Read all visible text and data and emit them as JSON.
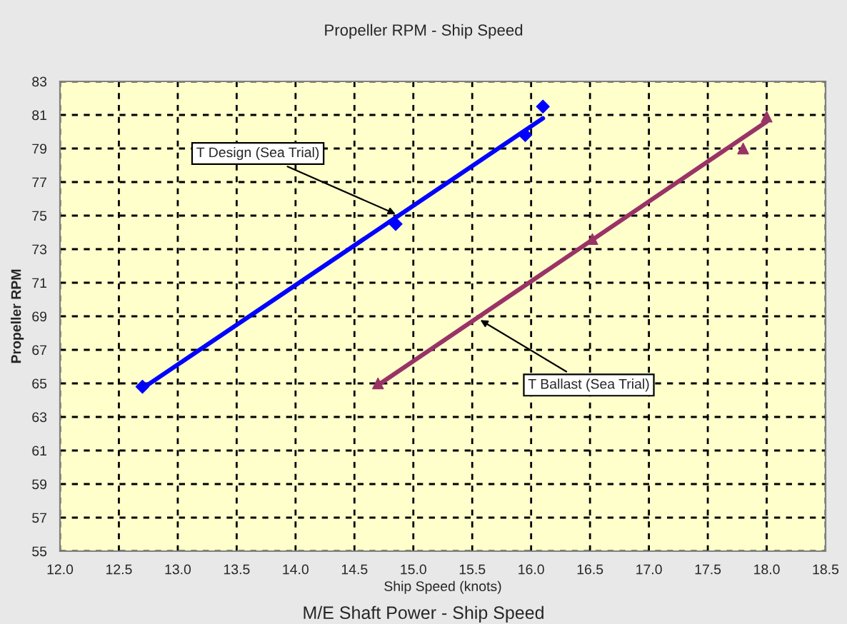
{
  "chart_data": {
    "type": "scatter",
    "title": "Propeller RPM - Ship Speed",
    "xlabel": "Ship Speed (knots)",
    "ylabel": "Propeller RPM",
    "xlim": [
      12.0,
      18.5
    ],
    "xticks": [
      {
        "value": 12.0,
        "label": "12.0"
      },
      {
        "value": 12.5,
        "label": "12.5"
      },
      {
        "value": 13.0,
        "label": "13.0"
      },
      {
        "value": 13.5,
        "label": "13.5"
      },
      {
        "value": 14.0,
        "label": "14.0"
      },
      {
        "value": 14.5,
        "label": "14.5"
      },
      {
        "value": 15.0,
        "label": "15.0"
      },
      {
        "value": 15.5,
        "label": "15.5"
      },
      {
        "value": 16.0,
        "label": "16.0"
      },
      {
        "value": 16.5,
        "label": "16.5"
      },
      {
        "value": 17.0,
        "label": "17.0"
      },
      {
        "value": 17.5,
        "label": "17.5"
      },
      {
        "value": 18.0,
        "label": "18.0"
      },
      {
        "value": 18.5,
        "label": "18.5"
      }
    ],
    "ylim": [
      55,
      83
    ],
    "yticks": [
      55,
      57,
      59,
      61,
      63,
      65,
      67,
      69,
      71,
      73,
      75,
      77,
      79,
      81,
      83
    ],
    "grid": true,
    "legend": false,
    "series": [
      {
        "color": "#0000ff",
        "marker": "diamond",
        "x": [
          12.7,
          14.85,
          15.95,
          16.1
        ],
        "values": [
          64.8,
          74.5,
          79.8,
          81.5
        ]
      },
      {
        "type": "line",
        "color": "#0000ff",
        "marker": "none",
        "x": [
          12.7,
          16.1
        ],
        "values": [
          64.7,
          80.8
        ]
      },
      {
        "color": "#993366",
        "marker": "triangle",
        "x": [
          14.7,
          16.52,
          17.8,
          18.0
        ],
        "values": [
          65.0,
          73.6,
          79.0,
          80.9
        ]
      },
      {
        "type": "line",
        "color": "#993366",
        "marker": "none",
        "x": [
          14.7,
          18.0
        ],
        "values": [
          64.9,
          80.6
        ]
      }
    ],
    "annotations": [
      {
        "text": "T Design (Sea Trial)",
        "x": 14.88,
        "y": 75.0
      },
      {
        "text": "T Ballast (Sea Trial)",
        "x": 15.54,
        "y": 68.9
      },
      "M/E Shaft Power - Ship Speed"
    ]
  }
}
